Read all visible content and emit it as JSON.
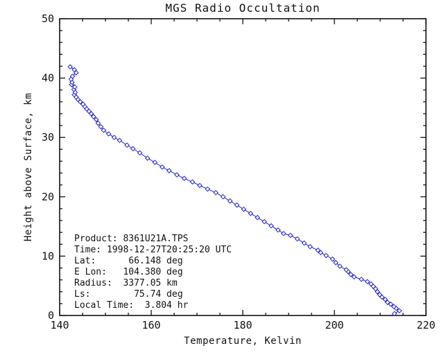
{
  "chart_data": {
    "type": "line",
    "title": "MGS Radio Occultation",
    "xlabel": "Temperature, Kelvin",
    "ylabel": "Height above Surface, km",
    "xlim": [
      140,
      220
    ],
    "ylim": [
      0,
      50
    ],
    "x_major_ticks": [
      140,
      160,
      180,
      200,
      220
    ],
    "x_minor_step": 5,
    "y_major_ticks": [
      0,
      10,
      20,
      30,
      40,
      50
    ],
    "y_minor_step": 2,
    "grid": false,
    "legend": "none",
    "line_color": "#2222c8",
    "axis_color": "#111111",
    "marker": "open-diamond",
    "series": [
      {
        "name": "temperature-profile",
        "height_km": [
          0.3,
          0.8,
          1.2,
          1.5,
          1.9,
          2.2,
          2.7,
          3.1,
          3.5,
          4.0,
          4.5,
          4.9,
          5.3,
          5.7,
          6.1,
          6.5,
          6.9,
          7.4,
          7.7,
          8.3,
          8.9,
          9.5,
          10.1,
          10.6,
          11.0,
          11.6,
          12.2,
          12.9,
          13.5,
          13.8,
          14.4,
          15.1,
          15.8,
          16.5,
          17.2,
          17.9,
          18.6,
          19.3,
          20.0,
          20.7,
          21.3,
          21.9,
          22.5,
          23.1,
          23.7,
          24.4,
          25.0,
          25.8,
          26.5,
          27.4,
          28.1,
          28.7,
          29.5,
          30.0,
          30.6,
          31.2,
          31.8,
          32.4,
          33.0,
          33.5,
          34.0,
          34.4,
          34.8,
          35.2,
          35.6,
          36.0,
          36.4,
          36.8,
          37.2,
          37.6,
          38.1,
          38.5,
          38.9,
          39.3,
          39.8,
          40.3,
          40.9,
          41.4,
          41.9
        ],
        "temperature_K": [
          213.1,
          214.2,
          213.5,
          213.0,
          212.3,
          211.6,
          211.1,
          210.4,
          209.9,
          209.4,
          209.0,
          208.5,
          208.0,
          207.2,
          205.9,
          204.3,
          203.6,
          203.0,
          202.6,
          201.2,
          200.3,
          199.6,
          198.2,
          197.0,
          196.4,
          194.7,
          193.4,
          191.9,
          190.4,
          188.9,
          187.7,
          186.2,
          184.7,
          183.2,
          181.7,
          180.2,
          178.7,
          177.2,
          175.7,
          174.1,
          172.3,
          170.6,
          169.0,
          167.2,
          165.6,
          163.9,
          162.4,
          160.8,
          159.2,
          157.5,
          156.0,
          154.7,
          153.1,
          151.9,
          150.7,
          149.6,
          149.0,
          148.4,
          148.0,
          147.4,
          146.9,
          146.4,
          145.9,
          145.5,
          145.1,
          144.5,
          144.0,
          143.6,
          143.2,
          143.4,
          143.1,
          143.3,
          142.6,
          142.7,
          142.5,
          142.8,
          143.6,
          143.2,
          142.3
        ]
      }
    ],
    "annotation": {
      "lines": [
        "Product: 8361U21A.TPS",
        "Time: 1998-12-27T20:25:20 UTC",
        "Lat:      66.148 deg",
        "E Lon:   104.380 deg",
        "Radius:  3377.05 km",
        "Ls:        75.74 deg",
        "Local Time:  3.804 hr"
      ]
    }
  }
}
